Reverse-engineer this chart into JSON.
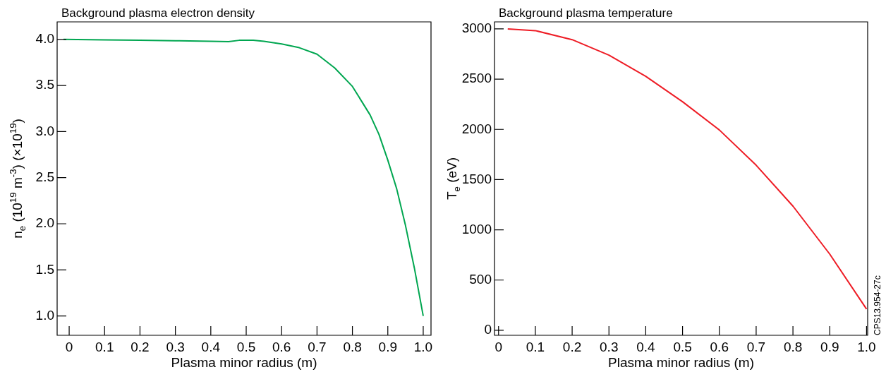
{
  "chart_data": [
    {
      "type": "line",
      "title": "Background plasma electron density",
      "xlabel": "Plasma minor radius (m)",
      "ylabel": "n$_{e}$ (10$^{19}$ m$^{-3}$) (×10$^{19}$)",
      "x": [
        -0.016,
        0.1,
        0.2,
        0.3,
        0.4,
        0.45,
        0.48,
        0.52,
        0.55,
        0.6,
        0.65,
        0.7,
        0.75,
        0.8,
        0.85,
        0.875,
        0.9,
        0.925,
        0.95,
        0.975,
        1.0
      ],
      "series": [
        {
          "color": "#00a650",
          "values": [
            4.0,
            3.995,
            3.99,
            3.985,
            3.98,
            3.975,
            3.99,
            3.99,
            3.98,
            3.95,
            3.91,
            3.84,
            3.69,
            3.49,
            3.18,
            2.97,
            2.69,
            2.38,
            1.98,
            1.52,
            1.0
          ]
        }
      ],
      "xlim": [
        -0.034,
        1.022
      ],
      "ylim": [
        0.79,
        4.19
      ],
      "xticks": [
        0,
        0.1,
        0.2,
        0.3,
        0.4,
        0.5,
        0.6,
        0.7,
        0.8,
        0.9,
        {
          "value": 1,
          "label": "1.0"
        }
      ],
      "yticks": [
        {
          "value": 1,
          "label": "1.0"
        },
        1.5,
        {
          "value": 2,
          "label": "2.0"
        },
        2.5,
        {
          "value": 3,
          "label": "3.0"
        },
        3.5,
        {
          "value": 4,
          "label": "4.0"
        }
      ]
    },
    {
      "type": "line",
      "title": "Background plasma temperature",
      "xlabel": "Plasma minor radius (m)",
      "ylabel": "T$_{e}$ (eV)",
      "x": [
        0.025,
        0.1,
        0.2,
        0.3,
        0.4,
        0.5,
        0.6,
        0.7,
        0.8,
        0.9,
        1.0
      ],
      "series": [
        {
          "color": "#ee1c25",
          "values": [
            3000,
            2983,
            2893,
            2739,
            2528,
            2275,
            1994,
            1643,
            1236,
            758,
            211
          ]
        }
      ],
      "xlim": [
        -0.011,
        1.003
      ],
      "ylim": [
        -50,
        3070
      ],
      "xticks": [
        0,
        0.1,
        0.2,
        0.3,
        0.4,
        0.5,
        0.6,
        0.7,
        0.8,
        0.9,
        {
          "value": 1,
          "label": "1.0"
        }
      ],
      "yticks": [
        0,
        500,
        1000,
        1500,
        2000,
        2500,
        3000
      ],
      "annotations": [
        "CPS13.954-27c"
      ]
    }
  ]
}
